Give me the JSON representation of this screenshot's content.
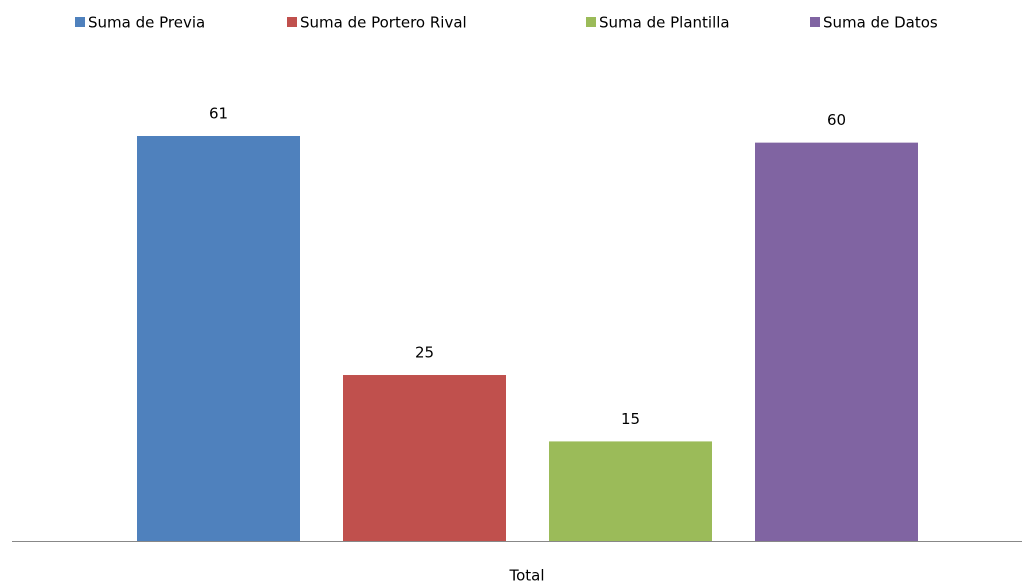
{
  "chart_data": {
    "type": "bar",
    "categories": [
      "Total"
    ],
    "series": [
      {
        "name": "Suma de Previa",
        "color": "#4f81bd",
        "values": [
          61
        ]
      },
      {
        "name": "Suma de Portero Rival",
        "color": "#c0504d",
        "values": [
          25
        ]
      },
      {
        "name": "Suma de Plantilla",
        "color": "#9bbb59",
        "values": [
          15
        ]
      },
      {
        "name": "Suma de Datos",
        "color": "#8064a2",
        "values": [
          60
        ]
      }
    ],
    "legend": "top"
  }
}
